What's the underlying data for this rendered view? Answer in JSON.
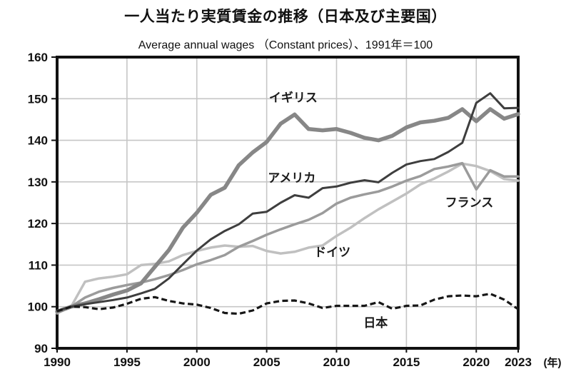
{
  "figure": {
    "title": "一人当たり実質賃金の推移（日本及び主要国）",
    "subtitle": "Average annual wages （Constant prices）、1991年＝100"
  },
  "chart_data": {
    "type": "line",
    "title": "一人当たり実質賃金の推移（日本及び主要国）",
    "subtitle": "Average annual wages （Constant prices）、1991年＝100",
    "index_note": "1991年＝100",
    "x": [
      1990,
      1991,
      1992,
      1993,
      1994,
      1995,
      1996,
      1997,
      1998,
      1999,
      2000,
      2001,
      2002,
      2003,
      2004,
      2005,
      2006,
      2007,
      2008,
      2009,
      2010,
      2011,
      2012,
      2013,
      2014,
      2015,
      2016,
      2017,
      2018,
      2019,
      2020,
      2021,
      2022,
      2023
    ],
    "x_axis": {
      "min": 1990,
      "max": 2023,
      "ticks": [
        1990,
        1995,
        2000,
        2005,
        2010,
        2015,
        2020,
        2023
      ],
      "unit_label": "(年)"
    },
    "y_axis": {
      "min": 90,
      "max": 160,
      "ticks": [
        90,
        100,
        110,
        120,
        130,
        140,
        150,
        160
      ],
      "grid": true
    },
    "grid_color": "#c6c6c6",
    "border_color": "#111111",
    "legend_position": "inline-labels",
    "series": [
      {
        "name": "イギリス",
        "key": "uk",
        "color": "#878787",
        "width": 5.5,
        "dash": null,
        "z": 3,
        "values": [
          98.8,
          100,
          100.8,
          101.8,
          102.9,
          103.9,
          105.6,
          109.6,
          113.6,
          119.0,
          122.6,
          126.9,
          128.6,
          134.0,
          137.1,
          139.6,
          144.0,
          146.2,
          142.7,
          142.4,
          142.7,
          141.8,
          140.6,
          140.0,
          141.1,
          143.1,
          144.3,
          144.7,
          145.4,
          147.5,
          144.6,
          147.5,
          145.2,
          146.3
        ]
      },
      {
        "name": "アメリカ",
        "key": "usa",
        "color": "#3e3e3e",
        "width": 3.0,
        "dash": null,
        "z": 4,
        "values": [
          99.0,
          100,
          100.6,
          101.1,
          101.6,
          102.2,
          103.2,
          104.3,
          106.8,
          110.2,
          113.5,
          116.2,
          118.2,
          119.8,
          122.4,
          122.8,
          125.0,
          126.8,
          126.2,
          128.5,
          128.9,
          129.8,
          130.4,
          129.9,
          132.2,
          134.2,
          135.0,
          135.5,
          137.2,
          139.4,
          149.0,
          151.3,
          147.7,
          147.8
        ]
      },
      {
        "name": "フランス",
        "key": "france",
        "color": "#9b9b9b",
        "width": 3.5,
        "dash": null,
        "z": 2,
        "values": [
          99.0,
          100,
          102.2,
          103.6,
          104.5,
          105.2,
          105.8,
          106.6,
          107.6,
          108.8,
          110.2,
          111.2,
          112.4,
          114.4,
          115.8,
          117.3,
          118.6,
          119.8,
          120.9,
          122.5,
          124.8,
          126.2,
          127.0,
          127.7,
          128.9,
          130.3,
          131.4,
          133.1,
          133.7,
          134.5,
          128.2,
          132.8,
          131.3,
          131.3
        ]
      },
      {
        "name": "ドイツ",
        "key": "germany",
        "color": "#c0c0c0",
        "width": 3.5,
        "dash": null,
        "z": 1,
        "values": [
          98.4,
          100,
          106.0,
          106.8,
          107.2,
          107.8,
          110.0,
          110.3,
          110.9,
          112.4,
          113.4,
          114.2,
          114.7,
          114.4,
          114.6,
          113.4,
          112.8,
          113.2,
          114.2,
          114.7,
          117.0,
          119.0,
          121.3,
          123.4,
          125.3,
          127.2,
          129.4,
          130.8,
          132.5,
          134.4,
          133.8,
          132.6,
          130.7,
          130.3
        ]
      },
      {
        "name": "日本",
        "key": "japan",
        "color": "#171717",
        "width": 3.2,
        "dash": "8 4.5",
        "z": 5,
        "values": [
          98.9,
          100,
          99.9,
          99.4,
          99.8,
          100.7,
          101.9,
          102.3,
          101.4,
          100.8,
          100.5,
          99.7,
          98.5,
          98.3,
          99.1,
          100.8,
          101.4,
          101.5,
          100.8,
          99.7,
          100.2,
          100.2,
          100.2,
          101.1,
          99.5,
          100.2,
          100.3,
          101.7,
          102.5,
          102.7,
          102.5,
          103.1,
          101.7,
          99.4
        ]
      }
    ],
    "annotations": [
      {
        "text": "イギリス",
        "key": "uk",
        "year": 2006.9,
        "value": 150.3
      },
      {
        "text": "アメリカ",
        "key": "usa",
        "year": 2006.8,
        "value": 131.0
      },
      {
        "text": "フランス",
        "key": "france",
        "year": 2019.5,
        "value": 125.1
      },
      {
        "text": "ドイツ",
        "key": "germany",
        "year": 2009.7,
        "value": 113.2
      },
      {
        "text": "日本",
        "key": "japan",
        "year": 2012.8,
        "value": 96.2
      }
    ]
  }
}
